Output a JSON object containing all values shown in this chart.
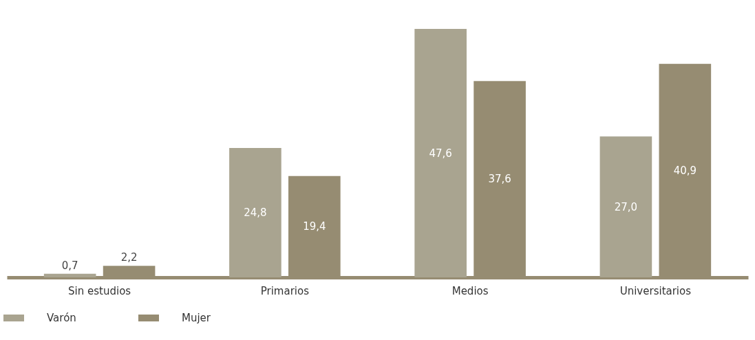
{
  "chart_data": {
    "type": "bar",
    "categories": [
      "Sin estudios",
      "Primarios",
      "Medios",
      "Universitarios"
    ],
    "series": [
      {
        "name": "Varón",
        "color": "#a9a490",
        "values": [
          0.7,
          24.8,
          47.6,
          27.0
        ],
        "value_labels": [
          "0,7",
          "24,8",
          "47,6",
          "27,0"
        ]
      },
      {
        "name": "Mujer",
        "color": "#968c72",
        "values": [
          2.2,
          19.4,
          37.6,
          40.9
        ],
        "value_labels": [
          "2,2",
          "19,4",
          "37,6",
          "40,9"
        ]
      }
    ],
    "legend": "bottom"
  }
}
